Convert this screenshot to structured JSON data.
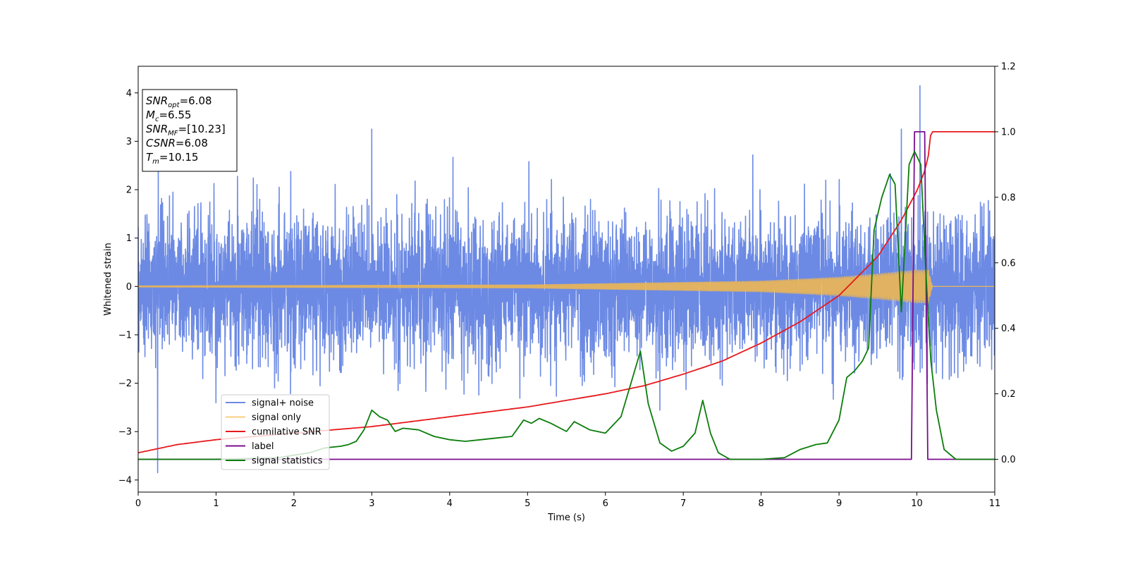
{
  "chart_data": {
    "type": "line",
    "xlabel": "Time (s)",
    "ylabel": "Whitened strain",
    "xlim": [
      0,
      11
    ],
    "ylim_left": [
      -4.25,
      4.55
    ],
    "ylim_right": [
      -0.1,
      1.2
    ],
    "xticks": [
      0,
      1,
      2,
      3,
      4,
      5,
      6,
      7,
      8,
      9,
      10,
      11
    ],
    "yticks_left": [
      -4,
      -3,
      -2,
      -1,
      0,
      1,
      2,
      3,
      4
    ],
    "yticks_right": [
      "0.0",
      "0.2",
      "0.4",
      "0.6",
      "0.8",
      "1.0",
      "1.2"
    ],
    "grid": false,
    "legend_position": "lower-left",
    "annotation": [
      {
        "base": "SNR",
        "sub": "opt",
        "value": "=6.08"
      },
      {
        "base": "M",
        "sub": "c",
        "value": "=6.55"
      },
      {
        "base": "SNR",
        "sub": "MF",
        "value": "=[10.23]"
      },
      {
        "base": "CSNR",
        "sub": "",
        "value": "=6.08"
      },
      {
        "base": "T",
        "sub": "m",
        "value": "=10.15"
      }
    ],
    "series": [
      {
        "name": "signal+ noise",
        "axis": "left",
        "color": "#6c8ae4",
        "kind": "noise",
        "sigma": 0.75,
        "envelope_max": 2.4,
        "notable_extremes": [
          {
            "x": 10.04,
            "y": 4.15
          },
          {
            "x": 0.25,
            "y": -3.85
          },
          {
            "x": 3.0,
            "y": 3.25
          },
          {
            "x": 9.8,
            "y": 3.25
          }
        ]
      },
      {
        "name": "signal only",
        "axis": "left",
        "color": "#f5b84a",
        "kind": "chirp",
        "amplitude_points": [
          [
            0,
            0.02
          ],
          [
            5,
            0.04
          ],
          [
            8,
            0.12
          ],
          [
            9,
            0.2
          ],
          [
            9.5,
            0.27
          ],
          [
            10,
            0.35
          ],
          [
            10.15,
            0.35
          ],
          [
            10.2,
            0.0
          ],
          [
            11,
            0.0
          ]
        ]
      },
      {
        "name": "cumilative SNR",
        "axis": "right",
        "color": "#e8191b",
        "points": [
          [
            0,
            0.02
          ],
          [
            0.5,
            0.045
          ],
          [
            1,
            0.06
          ],
          [
            2,
            0.08
          ],
          [
            3,
            0.1
          ],
          [
            4,
            0.13
          ],
          [
            5,
            0.16
          ],
          [
            6,
            0.2
          ],
          [
            6.5,
            0.225
          ],
          [
            7,
            0.26
          ],
          [
            7.5,
            0.3
          ],
          [
            8,
            0.355
          ],
          [
            8.5,
            0.42
          ],
          [
            9,
            0.5
          ],
          [
            9.5,
            0.62
          ],
          [
            9.8,
            0.73
          ],
          [
            10,
            0.82
          ],
          [
            10.1,
            0.88
          ],
          [
            10.15,
            0.93
          ],
          [
            10.18,
            1.0
          ],
          [
            11,
            1.0
          ]
        ]
      },
      {
        "name": "label",
        "axis": "right",
        "color": "#7b0e8f",
        "points": [
          [
            0,
            0.0
          ],
          [
            9.93,
            0.0
          ],
          [
            9.97,
            1.0
          ],
          [
            10.1,
            1.0
          ],
          [
            10.14,
            0.0
          ],
          [
            11,
            0.0
          ]
        ]
      },
      {
        "name": "signal statistics",
        "axis": "right",
        "color": "#0b7d0b",
        "points": [
          [
            0,
            0.0
          ],
          [
            1,
            0.0
          ],
          [
            1.8,
            0.005
          ],
          [
            2.2,
            0.02
          ],
          [
            2.4,
            0.035
          ],
          [
            2.6,
            0.04
          ],
          [
            2.7,
            0.045
          ],
          [
            2.8,
            0.055
          ],
          [
            2.9,
            0.09
          ],
          [
            3.0,
            0.15
          ],
          [
            3.1,
            0.13
          ],
          [
            3.2,
            0.12
          ],
          [
            3.3,
            0.085
          ],
          [
            3.4,
            0.095
          ],
          [
            3.6,
            0.09
          ],
          [
            3.8,
            0.07
          ],
          [
            4.0,
            0.06
          ],
          [
            4.2,
            0.055
          ],
          [
            4.4,
            0.06
          ],
          [
            4.6,
            0.065
          ],
          [
            4.8,
            0.07
          ],
          [
            4.95,
            0.12
          ],
          [
            5.05,
            0.11
          ],
          [
            5.15,
            0.125
          ],
          [
            5.3,
            0.11
          ],
          [
            5.5,
            0.085
          ],
          [
            5.6,
            0.115
          ],
          [
            5.8,
            0.09
          ],
          [
            6.0,
            0.08
          ],
          [
            6.2,
            0.13
          ],
          [
            6.35,
            0.25
          ],
          [
            6.45,
            0.33
          ],
          [
            6.55,
            0.17
          ],
          [
            6.7,
            0.05
          ],
          [
            6.85,
            0.025
          ],
          [
            7.0,
            0.04
          ],
          [
            7.15,
            0.08
          ],
          [
            7.25,
            0.18
          ],
          [
            7.35,
            0.08
          ],
          [
            7.45,
            0.02
          ],
          [
            7.6,
            0.0
          ],
          [
            8.0,
            0.0
          ],
          [
            8.3,
            0.005
          ],
          [
            8.5,
            0.03
          ],
          [
            8.7,
            0.045
          ],
          [
            8.85,
            0.05
          ],
          [
            9.0,
            0.12
          ],
          [
            9.1,
            0.25
          ],
          [
            9.2,
            0.27
          ],
          [
            9.3,
            0.3
          ],
          [
            9.38,
            0.34
          ],
          [
            9.45,
            0.7
          ],
          [
            9.55,
            0.8
          ],
          [
            9.65,
            0.87
          ],
          [
            9.72,
            0.84
          ],
          [
            9.8,
            0.45
          ],
          [
            9.9,
            0.9
          ],
          [
            9.97,
            0.94
          ],
          [
            10.05,
            0.9
          ],
          [
            10.12,
            0.55
          ],
          [
            10.18,
            0.3
          ],
          [
            10.25,
            0.15
          ],
          [
            10.35,
            0.03
          ],
          [
            10.5,
            0.0
          ],
          [
            11,
            0.0
          ]
        ]
      }
    ]
  }
}
